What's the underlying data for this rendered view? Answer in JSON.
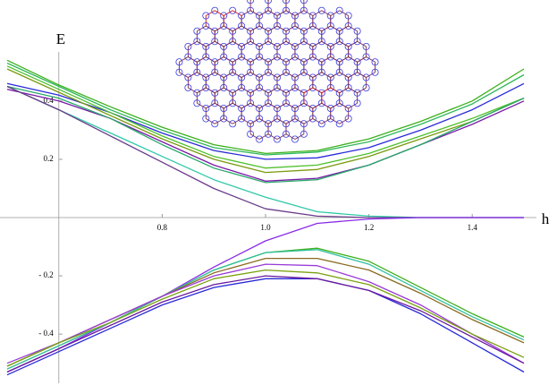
{
  "chart_data": {
    "type": "line",
    "x_label": "h",
    "y_label": "E",
    "x": [
      0.5,
      0.6,
      0.7,
      0.8,
      0.9,
      1.0,
      1.1,
      1.2,
      1.3,
      1.4,
      1.5
    ],
    "xlim": [
      0.5,
      1.5
    ],
    "ylim": [
      -0.55,
      0.55
    ],
    "xticks": [
      0.8,
      {
        "value": 1.0,
        "label": "1.0"
      },
      1.2,
      1.4
    ],
    "yticks": [
      {
        "value": -0.4,
        "label": "- 0.4"
      },
      {
        "value": -0.2,
        "label": "- 0.2"
      },
      0.2,
      0.4
    ],
    "y_axis_at": 0.6,
    "series": [
      {
        "color": "#3cb01c",
        "values": [
          0.54,
          0.455,
          0.38,
          0.31,
          0.25,
          0.22,
          0.23,
          0.27,
          0.33,
          0.4,
          0.51
        ]
      },
      {
        "color": "#2eb85a",
        "values": [
          0.53,
          0.45,
          0.37,
          0.3,
          0.24,
          0.215,
          0.225,
          0.26,
          0.32,
          0.39,
          0.49
        ]
      },
      {
        "color": "#2a2ad8",
        "values": [
          0.46,
          0.42,
          0.36,
          0.29,
          0.23,
          0.2,
          0.205,
          0.24,
          0.3,
          0.37,
          0.46
        ]
      },
      {
        "color": "#4cc02a",
        "values": [
          0.52,
          0.44,
          0.36,
          0.28,
          0.21,
          0.17,
          0.18,
          0.22,
          0.28,
          0.34,
          0.41
        ]
      },
      {
        "color": "#7a9a10",
        "values": [
          0.51,
          0.43,
          0.35,
          0.27,
          0.2,
          0.155,
          0.165,
          0.21,
          0.27,
          0.33,
          0.41
        ]
      },
      {
        "color": "#7a1aa8",
        "values": [
          0.44,
          0.4,
          0.34,
          0.26,
          0.18,
          0.125,
          0.135,
          0.18,
          0.25,
          0.32,
          0.4
        ]
      },
      {
        "color": "#28a86a",
        "values": [
          0.45,
          0.41,
          0.34,
          0.25,
          0.17,
          0.12,
          0.13,
          0.18,
          0.25,
          0.33,
          0.41
        ]
      },
      {
        "color": "#30c8a8",
        "values": [
          0.45,
          0.37,
          0.29,
          0.21,
          0.13,
          0.07,
          0.02,
          0.005,
          0,
          0,
          0
        ]
      },
      {
        "color": "#6a3a8a",
        "values": [
          0.45,
          0.37,
          0.28,
          0.19,
          0.1,
          0.03,
          0.005,
          0,
          0,
          0,
          0
        ]
      },
      {
        "color": "#8a2ae8",
        "values": [
          -0.53,
          -0.45,
          -0.36,
          -0.27,
          -0.17,
          -0.08,
          -0.02,
          -0.005,
          0,
          0,
          0
        ]
      },
      {
        "color": "#3cb01c",
        "values": [
          -0.52,
          -0.44,
          -0.36,
          -0.27,
          -0.18,
          -0.12,
          -0.105,
          -0.15,
          -0.24,
          -0.33,
          -0.41
        ]
      },
      {
        "color": "#30c0a0",
        "values": [
          -0.52,
          -0.44,
          -0.36,
          -0.27,
          -0.18,
          -0.12,
          -0.11,
          -0.16,
          -0.25,
          -0.34,
          -0.42
        ]
      },
      {
        "color": "#8a6a20",
        "values": [
          -0.51,
          -0.43,
          -0.35,
          -0.27,
          -0.19,
          -0.14,
          -0.14,
          -0.18,
          -0.26,
          -0.35,
          -0.43
        ]
      },
      {
        "color": "#9a3ad8",
        "values": [
          -0.5,
          -0.43,
          -0.35,
          -0.27,
          -0.2,
          -0.16,
          -0.165,
          -0.22,
          -0.3,
          -0.4,
          -0.5
        ]
      },
      {
        "color": "#7aa010",
        "values": [
          -0.51,
          -0.43,
          -0.36,
          -0.28,
          -0.21,
          -0.18,
          -0.19,
          -0.23,
          -0.31,
          -0.4,
          -0.48
        ]
      },
      {
        "color": "#2a2ad8",
        "values": [
          -0.54,
          -0.46,
          -0.38,
          -0.3,
          -0.24,
          -0.21,
          -0.21,
          -0.25,
          -0.33,
          -0.43,
          -0.53
        ]
      },
      {
        "color": "#6a1aa0",
        "values": [
          -0.53,
          -0.45,
          -0.37,
          -0.29,
          -0.23,
          -0.2,
          -0.21,
          -0.25,
          -0.32,
          -0.41,
          -0.5
        ]
      }
    ]
  }
}
